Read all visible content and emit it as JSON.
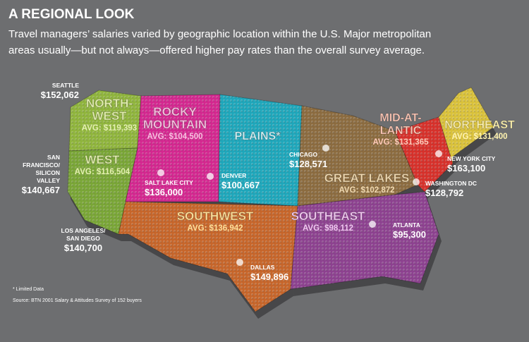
{
  "header": {
    "title": "A REGIONAL LOOK",
    "subtitle_lines": [
      "Travel managers’ salaries varied by geographic location within the U.S. Major metropolitan",
      "areas usually—but not always—offered higher pay rates than the overall survey average."
    ]
  },
  "regions": [
    {
      "name_lines": [
        "NORTH-",
        "WEST"
      ],
      "avg": "AVG: $119,393",
      "color": "#8fb43c",
      "label_color": "#e4f0b0"
    },
    {
      "name_lines": [
        "WEST"
      ],
      "avg": "AVG: $116,504",
      "color": "#79a536",
      "label_color": "#e4f0b0"
    },
    {
      "name_lines": [
        "ROCKY",
        "MOUNTAIN"
      ],
      "avg": "AVG: $104,500",
      "color": "#d3278f",
      "label_color": "#f8c0e0"
    },
    {
      "name_lines": [
        "PLAINS*"
      ],
      "avg": null,
      "color": "#1ea6ba",
      "label_color": "#d4f3f8"
    },
    {
      "name_lines": [
        "GREAT LAKES"
      ],
      "avg": "AVG: $102,872",
      "color": "#8b6b3f",
      "label_color": "#f0d9b0"
    },
    {
      "name_lines": [
        "MID-AT-",
        "LANTIC"
      ],
      "avg": "AVG: $131,365",
      "color": "#d6302a",
      "label_color": "#ffc9b8"
    },
    {
      "name_lines": [
        "NORTHEAST"
      ],
      "avg": "AVG: $131,400",
      "color": "#d9c13a",
      "label_color": "#fff3b0"
    },
    {
      "name_lines": [
        "SOUTHWEST"
      ],
      "avg": "AVG: $136,942",
      "color": "#c6652a",
      "label_color": "#ffe09a"
    },
    {
      "name_lines": [
        "SOUTHEAST"
      ],
      "avg": "AVG: $98,112",
      "color": "#8c418f",
      "label_color": "#f0c8f0"
    }
  ],
  "cities": [
    {
      "name_lines": [
        "SEATTLE"
      ],
      "salary": "$152,062"
    },
    {
      "name_lines": [
        "SAN",
        "FRANCISCO/",
        "SILICON",
        "VALLEY"
      ],
      "salary": "$140,667"
    },
    {
      "name_lines": [
        "LOS ANGELES/",
        "SAN DIEGO"
      ],
      "salary": "$140,700"
    },
    {
      "name_lines": [
        "SALT LAKE CITY"
      ],
      "salary": "$136,000"
    },
    {
      "name_lines": [
        "DENVER"
      ],
      "salary": "$100,667"
    },
    {
      "name_lines": [
        "CHICAGO"
      ],
      "salary": "$128,571"
    },
    {
      "name_lines": [
        "NEW YORK CITY"
      ],
      "salary": "$163,100"
    },
    {
      "name_lines": [
        "WASHINGTON DC"
      ],
      "salary": "$128,792"
    },
    {
      "name_lines": [
        "ATLANTA"
      ],
      "salary": "$95,300"
    },
    {
      "name_lines": [
        "DALLAS"
      ],
      "salary": "$149,896"
    }
  ],
  "footnotes": [
    "* Limited Data",
    "Source: BTN 2001 Salary & Attitudes Survey of 152 buyers"
  ]
}
